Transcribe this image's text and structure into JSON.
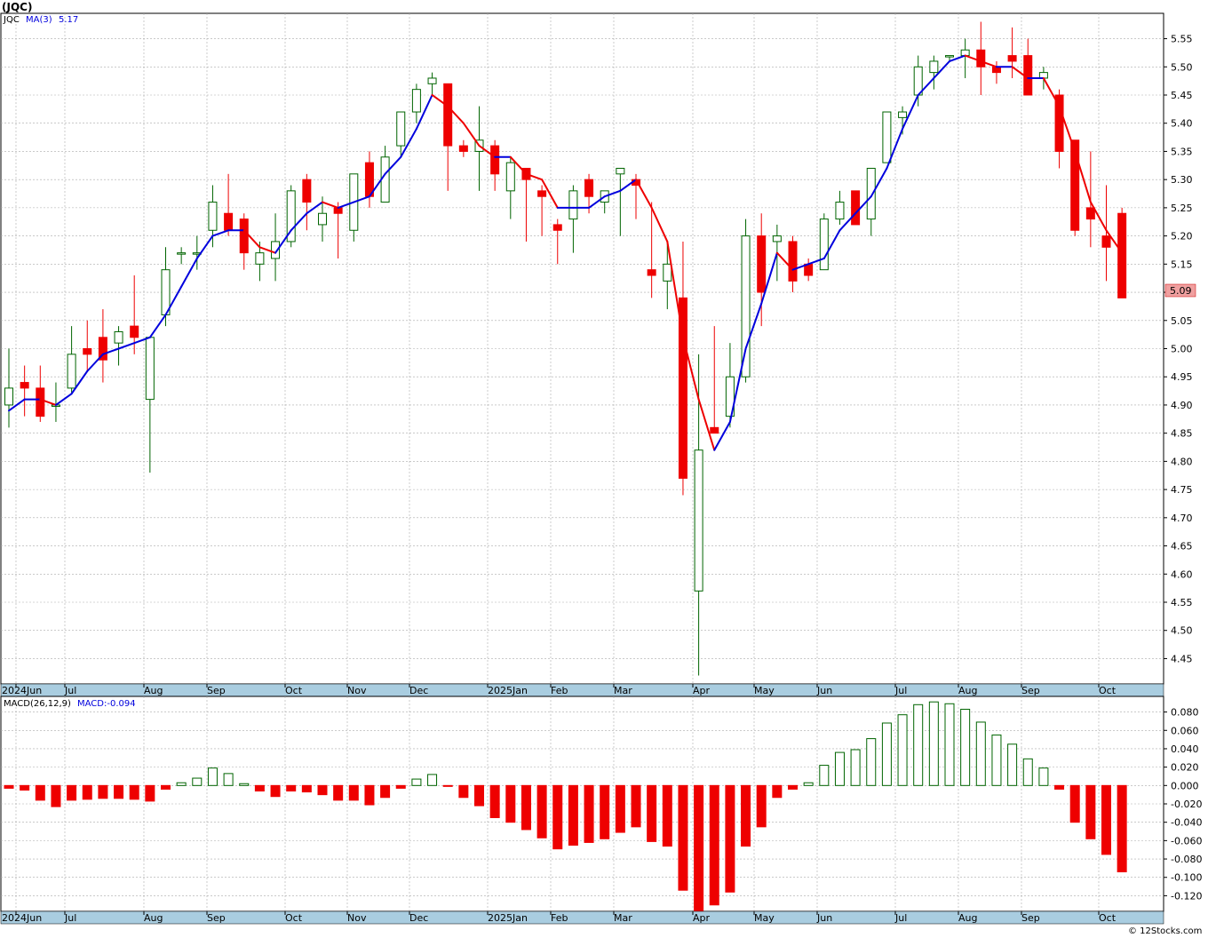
{
  "title": "(JQC)",
  "watermark": "© 12Stocks.com",
  "colors": {
    "up": "#006400",
    "down": "#ee0000",
    "ma_up": "#0000dd",
    "ma_down": "#ee0000",
    "grid": "#aaaaaa",
    "axis_band": "#a9cde0",
    "last_price_bg": "#f0a0a0"
  },
  "price_panel": {
    "legend_symbol": "JQC",
    "legend_ma": "MA(3)",
    "legend_ma_value": "5.17",
    "last_price_label": "5.09",
    "yticks": [
      "5.55",
      "5.50",
      "5.45",
      "5.40",
      "5.35",
      "5.30",
      "5.25",
      "5.20",
      "5.15",
      "5.10",
      "5.05",
      "5.00",
      "4.95",
      "4.90",
      "4.85",
      "4.80",
      "4.75",
      "4.70",
      "4.65",
      "4.60",
      "4.55",
      "4.50",
      "4.45"
    ]
  },
  "macd_panel": {
    "legend_label": "MACD(26,12,9)",
    "legend_value": "MACD:-0.094",
    "yticks": [
      "0.080",
      "0.060",
      "0.040",
      "0.020",
      "0.000",
      "-0.020",
      "-0.040",
      "-0.060",
      "-0.080",
      "-0.100",
      "-0.120"
    ]
  },
  "x_labels": [
    "2024Jun",
    "Jul",
    "Aug",
    "Sep",
    "Oct",
    "Nov",
    "Dec",
    "2025Jan",
    "Feb",
    "Mar",
    "Apr",
    "May",
    "Jun",
    "Jul",
    "Aug",
    "Sep",
    "Oct"
  ],
  "chart_data": [
    {
      "type": "candlestick",
      "title": "(JQC)",
      "period": "weekly",
      "ylim": [
        4.41,
        5.58
      ],
      "grid": true,
      "series_ma_name": "MA(3)",
      "candles": [
        {
          "o": 4.9,
          "h": 5.0,
          "l": 4.86,
          "c": 4.93
        },
        {
          "o": 4.94,
          "h": 4.97,
          "l": 4.88,
          "c": 4.93
        },
        {
          "o": 4.93,
          "h": 4.97,
          "l": 4.87,
          "c": 4.88
        },
        {
          "o": 4.9,
          "h": 4.94,
          "l": 4.87,
          "c": 4.9
        },
        {
          "o": 4.93,
          "h": 5.04,
          "l": 4.92,
          "c": 4.99
        },
        {
          "o": 5.0,
          "h": 5.05,
          "l": 4.96,
          "c": 4.99
        },
        {
          "o": 5.02,
          "h": 5.07,
          "l": 4.94,
          "c": 4.98
        },
        {
          "o": 5.01,
          "h": 5.04,
          "l": 4.97,
          "c": 5.03
        },
        {
          "o": 5.04,
          "h": 5.13,
          "l": 4.99,
          "c": 5.02
        },
        {
          "o": 4.91,
          "h": 5.02,
          "l": 4.78,
          "c": 5.02
        },
        {
          "o": 5.06,
          "h": 5.18,
          "l": 5.04,
          "c": 5.14
        },
        {
          "o": 5.17,
          "h": 5.18,
          "l": 5.15,
          "c": 5.17
        },
        {
          "o": 5.17,
          "h": 5.2,
          "l": 5.14,
          "c": 5.17
        },
        {
          "o": 5.21,
          "h": 5.29,
          "l": 5.18,
          "c": 5.26
        },
        {
          "o": 5.24,
          "h": 5.31,
          "l": 5.2,
          "c": 5.21
        },
        {
          "o": 5.23,
          "h": 5.24,
          "l": 5.14,
          "c": 5.17
        },
        {
          "o": 5.15,
          "h": 5.19,
          "l": 5.12,
          "c": 5.17
        },
        {
          "o": 5.16,
          "h": 5.24,
          "l": 5.12,
          "c": 5.19
        },
        {
          "o": 5.19,
          "h": 5.29,
          "l": 5.18,
          "c": 5.28
        },
        {
          "o": 5.3,
          "h": 5.31,
          "l": 5.21,
          "c": 5.26
        },
        {
          "o": 5.22,
          "h": 5.27,
          "l": 5.19,
          "c": 5.24
        },
        {
          "o": 5.25,
          "h": 5.26,
          "l": 5.16,
          "c": 5.24
        },
        {
          "o": 5.21,
          "h": 5.31,
          "l": 5.19,
          "c": 5.31
        },
        {
          "o": 5.33,
          "h": 5.35,
          "l": 5.25,
          "c": 5.27
        },
        {
          "o": 5.26,
          "h": 5.36,
          "l": 5.26,
          "c": 5.34
        },
        {
          "o": 5.36,
          "h": 5.42,
          "l": 5.34,
          "c": 5.42
        },
        {
          "o": 5.42,
          "h": 5.47,
          "l": 5.4,
          "c": 5.46
        },
        {
          "o": 5.47,
          "h": 5.49,
          "l": 5.45,
          "c": 5.48
        },
        {
          "o": 5.47,
          "h": 5.47,
          "l": 5.28,
          "c": 5.36
        },
        {
          "o": 5.36,
          "h": 5.37,
          "l": 5.34,
          "c": 5.35
        },
        {
          "o": 5.35,
          "h": 5.43,
          "l": 5.28,
          "c": 5.37
        },
        {
          "o": 5.36,
          "h": 5.37,
          "l": 5.28,
          "c": 5.31
        },
        {
          "o": 5.28,
          "h": 5.34,
          "l": 5.23,
          "c": 5.33
        },
        {
          "o": 5.32,
          "h": 5.32,
          "l": 5.19,
          "c": 5.3
        },
        {
          "o": 5.28,
          "h": 5.29,
          "l": 5.2,
          "c": 5.27
        },
        {
          "o": 5.22,
          "h": 5.23,
          "l": 5.15,
          "c": 5.21
        },
        {
          "o": 5.23,
          "h": 5.29,
          "l": 5.17,
          "c": 5.28
        },
        {
          "o": 5.3,
          "h": 5.31,
          "l": 5.24,
          "c": 5.27
        },
        {
          "o": 5.26,
          "h": 5.28,
          "l": 5.24,
          "c": 5.28
        },
        {
          "o": 5.31,
          "h": 5.32,
          "l": 5.2,
          "c": 5.32
        },
        {
          "o": 5.3,
          "h": 5.31,
          "l": 5.23,
          "c": 5.29
        },
        {
          "o": 5.14,
          "h": 5.26,
          "l": 5.09,
          "c": 5.13
        },
        {
          "o": 5.12,
          "h": 5.19,
          "l": 5.07,
          "c": 5.15
        },
        {
          "o": 5.09,
          "h": 5.19,
          "l": 4.74,
          "c": 4.77
        },
        {
          "o": 4.57,
          "h": 4.99,
          "l": 4.42,
          "c": 4.82
        },
        {
          "o": 4.86,
          "h": 5.04,
          "l": 4.85,
          "c": 4.85
        },
        {
          "o": 4.88,
          "h": 5.01,
          "l": 4.86,
          "c": 4.95
        },
        {
          "o": 4.95,
          "h": 5.23,
          "l": 4.94,
          "c": 5.2
        },
        {
          "o": 5.2,
          "h": 5.24,
          "l": 5.04,
          "c": 5.1
        },
        {
          "o": 5.19,
          "h": 5.22,
          "l": 5.12,
          "c": 5.2
        },
        {
          "o": 5.19,
          "h": 5.2,
          "l": 5.1,
          "c": 5.12
        },
        {
          "o": 5.15,
          "h": 5.16,
          "l": 5.12,
          "c": 5.13
        },
        {
          "o": 5.14,
          "h": 5.24,
          "l": 5.14,
          "c": 5.23
        },
        {
          "o": 5.23,
          "h": 5.28,
          "l": 5.22,
          "c": 5.26
        },
        {
          "o": 5.28,
          "h": 5.28,
          "l": 5.22,
          "c": 5.22
        },
        {
          "o": 5.23,
          "h": 5.32,
          "l": 5.2,
          "c": 5.32
        },
        {
          "o": 5.33,
          "h": 5.42,
          "l": 5.33,
          "c": 5.42
        },
        {
          "o": 5.41,
          "h": 5.43,
          "l": 5.38,
          "c": 5.42
        },
        {
          "o": 5.45,
          "h": 5.52,
          "l": 5.43,
          "c": 5.5
        },
        {
          "o": 5.49,
          "h": 5.52,
          "l": 5.46,
          "c": 5.51
        },
        {
          "o": 5.52,
          "h": 5.52,
          "l": 5.51,
          "c": 5.52
        },
        {
          "o": 5.52,
          "h": 5.55,
          "l": 5.48,
          "c": 5.53
        },
        {
          "o": 5.53,
          "h": 5.58,
          "l": 5.45,
          "c": 5.5
        },
        {
          "o": 5.5,
          "h": 5.51,
          "l": 5.47,
          "c": 5.49
        },
        {
          "o": 5.52,
          "h": 5.57,
          "l": 5.48,
          "c": 5.51
        },
        {
          "o": 5.52,
          "h": 5.55,
          "l": 5.45,
          "c": 5.45
        },
        {
          "o": 5.48,
          "h": 5.5,
          "l": 5.46,
          "c": 5.49
        },
        {
          "o": 5.45,
          "h": 5.46,
          "l": 5.32,
          "c": 5.35
        },
        {
          "o": 5.37,
          "h": 5.37,
          "l": 5.2,
          "c": 5.21
        },
        {
          "o": 5.25,
          "h": 5.35,
          "l": 5.18,
          "c": 5.23
        },
        {
          "o": 5.2,
          "h": 5.29,
          "l": 5.12,
          "c": 5.18
        },
        {
          "o": 5.24,
          "h": 5.25,
          "l": 5.09,
          "c": 5.09
        }
      ],
      "ma": [
        4.89,
        4.91,
        4.91,
        4.9,
        4.92,
        4.96,
        4.99,
        5.0,
        5.01,
        5.02,
        5.06,
        5.11,
        5.16,
        5.2,
        5.21,
        5.21,
        5.18,
        5.17,
        5.21,
        5.24,
        5.26,
        5.25,
        5.26,
        5.27,
        5.31,
        5.34,
        5.39,
        5.45,
        5.43,
        5.4,
        5.36,
        5.34,
        5.34,
        5.31,
        5.3,
        5.25,
        5.25,
        5.25,
        5.27,
        5.28,
        5.3,
        5.25,
        5.19,
        5.02,
        4.91,
        4.82,
        4.87,
        5.0,
        5.08,
        5.17,
        5.14,
        5.15,
        5.16,
        5.21,
        5.24,
        5.27,
        5.32,
        5.39,
        5.45,
        5.48,
        5.51,
        5.52,
        5.51,
        5.5,
        5.5,
        5.48,
        5.48,
        5.43,
        5.35,
        5.26,
        5.21,
        5.17
      ]
    },
    {
      "type": "bar",
      "title": "MACD(26,12,9)",
      "ylim": [
        -0.135,
        0.095
      ],
      "values": [
        -0.003,
        -0.005,
        -0.016,
        -0.023,
        -0.016,
        -0.015,
        -0.014,
        -0.014,
        -0.015,
        -0.017,
        -0.004,
        0.003,
        0.008,
        0.019,
        0.013,
        0.002,
        -0.006,
        -0.012,
        -0.006,
        -0.007,
        -0.01,
        -0.016,
        -0.016,
        -0.021,
        -0.013,
        -0.003,
        0.007,
        0.012,
        -0.001,
        -0.013,
        -0.022,
        -0.035,
        -0.04,
        -0.048,
        -0.057,
        -0.069,
        -0.065,
        -0.062,
        -0.058,
        -0.051,
        -0.045,
        -0.061,
        -0.066,
        -0.114,
        -0.14,
        -0.13,
        -0.116,
        -0.066,
        -0.045,
        -0.013,
        -0.004,
        0.003,
        0.022,
        0.036,
        0.039,
        0.051,
        0.068,
        0.077,
        0.088,
        0.091,
        0.089,
        0.083,
        0.069,
        0.055,
        0.045,
        0.029,
        0.019,
        -0.004,
        -0.04,
        -0.058,
        -0.075,
        -0.094
      ]
    }
  ]
}
